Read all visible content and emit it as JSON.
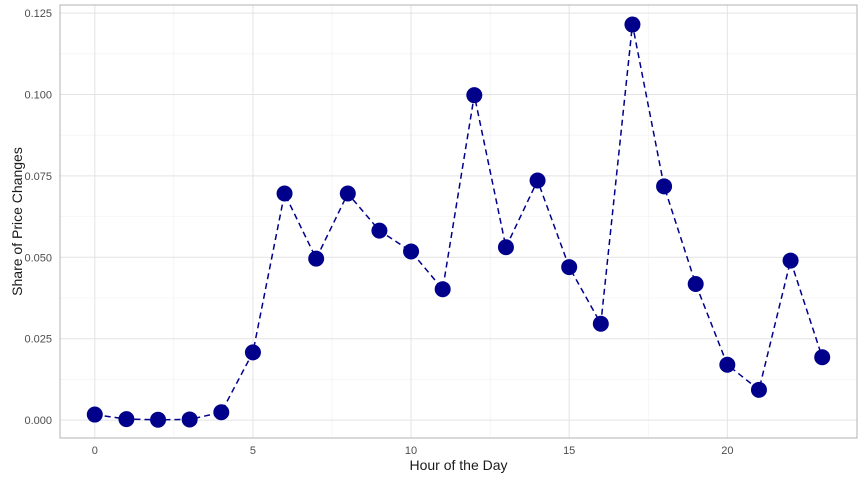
{
  "chart_data": {
    "type": "line",
    "xlabel": "Hour of the Day",
    "ylabel": "Share of Price Changes",
    "xlim": [
      -1.1,
      24.1
    ],
    "ylim": [
      -0.0055,
      0.1275
    ],
    "x_ticks": [
      0,
      5,
      10,
      15,
      20
    ],
    "x_tick_labels": [
      "0",
      "5",
      "10",
      "15",
      "20"
    ],
    "y_ticks": [
      0,
      0.025,
      0.05,
      0.075,
      0.1,
      0.125
    ],
    "y_tick_labels": [
      "0.000",
      "0.025",
      "0.050",
      "0.075",
      "0.100",
      "0.125"
    ],
    "grid": true,
    "line_style": "dashed",
    "color": "#00008b",
    "series": [
      {
        "x": [
          0,
          1,
          2,
          3,
          4,
          5,
          6,
          7,
          8,
          9,
          10,
          11,
          12,
          13,
          14,
          15,
          16,
          17,
          18,
          19,
          20,
          21,
          22,
          23
        ],
        "y": [
          0.0017,
          0.0003,
          0.0001,
          0.0002,
          0.0024,
          0.0208,
          0.0696,
          0.0496,
          0.0696,
          0.0582,
          0.0518,
          0.0402,
          0.0998,
          0.0531,
          0.0736,
          0.047,
          0.0296,
          0.1215,
          0.0718,
          0.0418,
          0.017,
          0.0093,
          0.049,
          0.0193
        ]
      }
    ]
  }
}
